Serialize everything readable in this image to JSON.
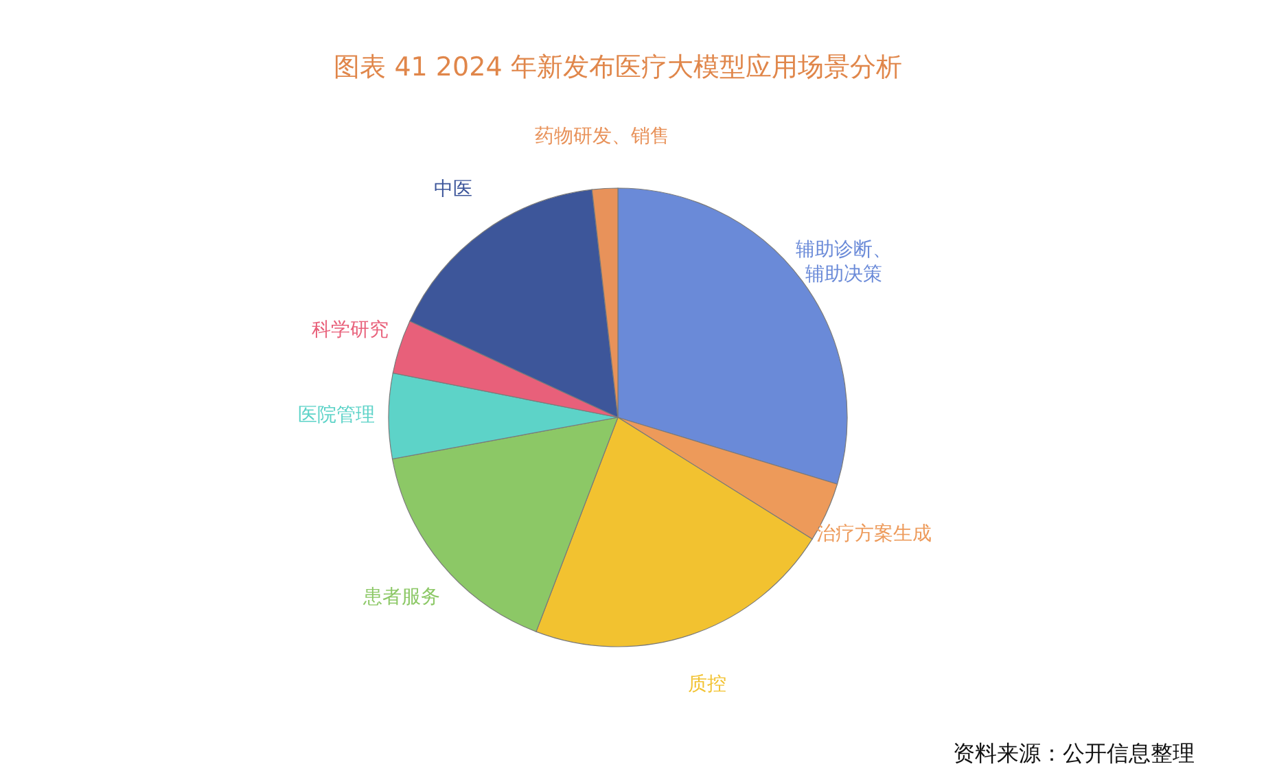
{
  "chart_data": {
    "type": "pie",
    "title": "图表 41 2024 年新发布医疗大模型应用场景分析",
    "categories": [
      "辅助诊断、辅助决策",
      "治疗方案生成",
      "质控",
      "患者服务",
      "医院管理",
      "科学研究",
      "中医",
      "药物研发、销售"
    ],
    "values": [
      29.7,
      4.2,
      21.9,
      16.3,
      6.0,
      3.8,
      16.3,
      1.8
    ],
    "colors": [
      "#6a8ad8",
      "#ed9a5a",
      "#f2c230",
      "#8cc866",
      "#5dd3c8",
      "#e8607a",
      "#3d569a",
      "#e8925a"
    ],
    "legend": false,
    "annotations": [
      "资料来源：公开信息整理"
    ]
  }
}
